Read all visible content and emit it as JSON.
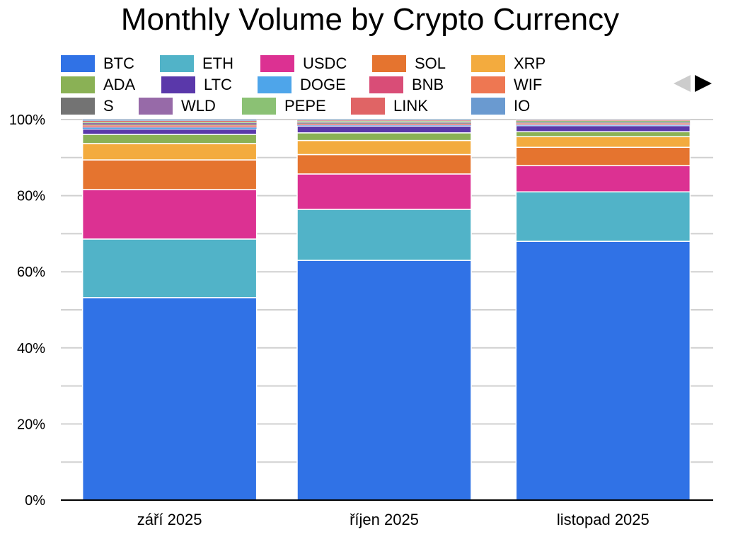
{
  "chart_data": {
    "type": "bar",
    "stacked": true,
    "normalized": true,
    "title": "Monthly Volume by Crypto Currency",
    "xlabel": "",
    "ylabel": "",
    "ylim": [
      0,
      100
    ],
    "yticks": [
      "0%",
      "20%",
      "40%",
      "60%",
      "80%",
      "100%"
    ],
    "ytick_values": [
      0,
      20,
      40,
      60,
      80,
      100
    ],
    "grid": true,
    "legend_position": "top",
    "categories": [
      "září 2025",
      "říjen 2025",
      "listopad 2025"
    ],
    "series": [
      {
        "name": "BTC",
        "color": "#3072e6",
        "values": [
          53.2,
          63.0,
          68.0
        ]
      },
      {
        "name": "ETH",
        "color": "#51b3c8",
        "values": [
          15.4,
          13.4,
          13.0
        ]
      },
      {
        "name": "USDC",
        "color": "#dc3192",
        "values": [
          13.0,
          9.3,
          6.9
        ]
      },
      {
        "name": "SOL",
        "color": "#e5742f",
        "values": [
          7.8,
          5.1,
          4.8
        ]
      },
      {
        "name": "XRP",
        "color": "#f3ab3e",
        "values": [
          4.3,
          3.7,
          2.8
        ]
      },
      {
        "name": "ADA",
        "color": "#8ab155",
        "values": [
          2.4,
          2.0,
          1.3
        ]
      },
      {
        "name": "LTC",
        "color": "#5a38aa",
        "values": [
          1.4,
          1.8,
          1.6
        ]
      },
      {
        "name": "DOGE",
        "color": "#4ea5ea",
        "values": [
          0.4,
          0.2,
          0.2
        ]
      },
      {
        "name": "BNB",
        "color": "#d94d77",
        "values": [
          0.3,
          0.2,
          0.2
        ]
      },
      {
        "name": "WIF",
        "color": "#ee7752",
        "values": [
          0.3,
          0.2,
          0.2
        ]
      },
      {
        "name": "S",
        "color": "#737373",
        "values": [
          0.3,
          0.2,
          0.2
        ]
      },
      {
        "name": "WLD",
        "color": "#976aa8",
        "values": [
          0.3,
          0.2,
          0.2
        ]
      },
      {
        "name": "PEPE",
        "color": "#8bc174",
        "values": [
          0.3,
          0.3,
          0.3
        ]
      },
      {
        "name": "LINK",
        "color": "#e06465",
        "values": [
          0.3,
          0.2,
          0.2
        ]
      },
      {
        "name": "IO",
        "color": "#6a9ad0",
        "values": [
          0.3,
          0.2,
          0.1
        ]
      }
    ]
  },
  "legend_nav": {
    "prev": "previous-page",
    "next": "next-page"
  }
}
